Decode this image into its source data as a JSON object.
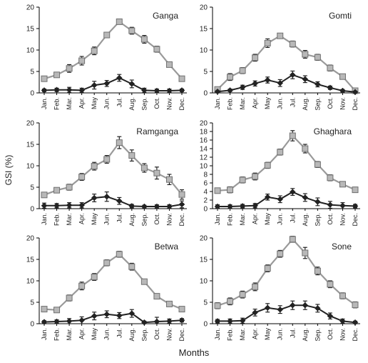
{
  "figure": {
    "ylabel": "GSI (%)",
    "xlabel": "Months"
  },
  "chart_data": [
    {
      "type": "line",
      "title": "Ganga",
      "categories": [
        "Jan.",
        "Feb.",
        "Mar.",
        "Apr.",
        "May",
        "Jun.",
        "Jul.",
        "Aug.",
        "Sep.",
        "Oct.",
        "Nov.",
        "Dec."
      ],
      "ylim": [
        0,
        20
      ],
      "yticks": [
        0,
        5,
        10,
        15,
        20
      ],
      "series": [
        {
          "values": [
            3.3,
            4.2,
            5.7,
            7.5,
            9.8,
            13.5,
            16.6,
            14.5,
            12.5,
            10.2,
            6.6,
            3.3
          ],
          "errors": [
            0.6,
            0.5,
            0.9,
            1.0,
            0.9,
            0.6,
            0.6,
            0.8,
            0.9,
            0.7,
            0.5,
            0.6
          ],
          "color": "#9a9a9a",
          "marker": "square"
        },
        {
          "values": [
            0.6,
            0.7,
            0.7,
            0.6,
            1.8,
            2.2,
            3.5,
            2.1,
            0.6,
            0.5,
            0.5,
            0.6
          ],
          "errors": [
            0.3,
            0.4,
            0.6,
            0.5,
            0.9,
            0.7,
            0.8,
            0.9,
            0.5,
            0.4,
            0.4,
            0.3
          ],
          "color": "#222222",
          "marker": "diamond"
        }
      ]
    },
    {
      "type": "line",
      "title": "Gomti",
      "categories": [
        "Jan.",
        "Feb.",
        "Mar.",
        "Apr.",
        "May",
        "Jun.",
        "Jul.",
        "Aug.",
        "Sep.",
        "Oct.",
        "Nov.",
        "Dec."
      ],
      "ylim": [
        0,
        20
      ],
      "yticks": [
        0,
        5,
        10,
        15,
        20
      ],
      "series": [
        {
          "values": [
            0.8,
            3.7,
            5.2,
            8.2,
            11.6,
            13.3,
            11.4,
            9.0,
            8.3,
            5.8,
            3.8,
            0.5
          ],
          "errors": [
            0.3,
            0.8,
            0.7,
            0.8,
            1.0,
            0.6,
            0.7,
            0.9,
            0.7,
            0.7,
            0.6,
            0.3
          ],
          "color": "#9a9a9a",
          "marker": "square"
        },
        {
          "values": [
            0.3,
            0.6,
            1.3,
            2.2,
            3.0,
            2.3,
            4.2,
            3.2,
            2.0,
            1.2,
            0.5,
            0.2
          ],
          "errors": [
            0.2,
            0.3,
            0.5,
            0.6,
            0.7,
            0.8,
            0.9,
            0.8,
            0.6,
            0.4,
            0.3,
            0.2
          ],
          "color": "#222222",
          "marker": "diamond"
        }
      ]
    },
    {
      "type": "line",
      "title": "Ramganga",
      "categories": [
        "Jan.",
        "Feb.",
        "Mar.",
        "Apr.",
        "May",
        "Jun.",
        "Jul.",
        "Aug.",
        "Sep.",
        "Oct.",
        "Nov.",
        "Dec."
      ],
      "ylim": [
        0,
        20
      ],
      "yticks": [
        0,
        5,
        10,
        15,
        20
      ],
      "series": [
        {
          "values": [
            3.2,
            4.3,
            5.0,
            7.4,
            9.9,
            11.5,
            15.4,
            12.4,
            9.5,
            8.3,
            6.8,
            3.3
          ],
          "errors": [
            0.6,
            0.6,
            0.7,
            0.8,
            0.9,
            0.9,
            1.4,
            1.3,
            1.0,
            1.4,
            1.2,
            1.1
          ],
          "color": "#9a9a9a",
          "marker": "square"
        },
        {
          "values": [
            0.7,
            0.7,
            0.8,
            0.8,
            2.5,
            2.8,
            1.8,
            0.6,
            0.5,
            0.5,
            0.5,
            1.0
          ],
          "errors": [
            0.6,
            0.5,
            0.6,
            0.6,
            0.9,
            1.1,
            0.8,
            0.4,
            0.3,
            0.4,
            0.4,
            0.8
          ],
          "color": "#222222",
          "marker": "diamond"
        }
      ]
    },
    {
      "type": "line",
      "title": "Ghaghara",
      "categories": [
        "Jan.",
        "Feb.",
        "Mar.",
        "Apr.",
        "May",
        "Jun.",
        "Jul.",
        "Aug.",
        "Sep.",
        "Oct.",
        "Nov.",
        "Dec."
      ],
      "ylim": [
        0,
        20
      ],
      "yticks": [
        0,
        2,
        4,
        6,
        8,
        10,
        12,
        14,
        16,
        18,
        20
      ],
      "series": [
        {
          "values": [
            4.2,
            4.4,
            6.7,
            7.5,
            10.1,
            13.2,
            17.0,
            14.0,
            10.3,
            7.2,
            5.7,
            4.4
          ],
          "errors": [
            0.6,
            0.7,
            0.7,
            0.8,
            0.7,
            0.7,
            1.2,
            1.0,
            0.7,
            0.7,
            0.6,
            0.6
          ],
          "color": "#9a9a9a",
          "marker": "square"
        },
        {
          "values": [
            0.5,
            0.5,
            0.6,
            0.7,
            2.7,
            2.2,
            3.9,
            2.6,
            1.6,
            0.9,
            0.7,
            0.6
          ],
          "errors": [
            0.4,
            0.4,
            0.4,
            0.5,
            0.7,
            0.8,
            0.8,
            0.9,
            0.9,
            0.8,
            0.7,
            0.4
          ],
          "color": "#222222",
          "marker": "diamond"
        }
      ]
    },
    {
      "type": "line",
      "title": "Betwa",
      "categories": [
        "Jan.",
        "Feb.",
        "Mar.",
        "Apr.",
        "May",
        "Jun.",
        "Jul.",
        "Aug.",
        "Sep.",
        "Oct.",
        "Nov.",
        "Dec."
      ],
      "ylim": [
        0,
        20
      ],
      "yticks": [
        0,
        5,
        10,
        15,
        20
      ],
      "series": [
        {
          "values": [
            3.4,
            3.2,
            6.0,
            8.8,
            10.9,
            14.2,
            16.2,
            13.3,
            9.8,
            6.4,
            4.6,
            3.4
          ],
          "errors": [
            0.6,
            0.5,
            0.7,
            0.9,
            0.8,
            0.7,
            0.7,
            0.8,
            0.6,
            0.6,
            0.6,
            0.6
          ],
          "color": "#9a9a9a",
          "marker": "square"
        },
        {
          "values": [
            0.4,
            0.5,
            0.6,
            0.8,
            1.8,
            2.2,
            1.9,
            2.4,
            0.3,
            0.5,
            0.6,
            0.8
          ],
          "errors": [
            0.3,
            0.4,
            0.6,
            0.8,
            0.9,
            0.8,
            0.7,
            0.9,
            0.3,
            1.0,
            0.5,
            0.4
          ],
          "color": "#222222",
          "marker": "diamond"
        }
      ]
    },
    {
      "type": "line",
      "title": "Sone",
      "categories": [
        "Jan.",
        "Feb.",
        "Mar.",
        "Apr.",
        "May",
        "Jun.",
        "Jul.",
        "Aug.",
        "Sep.",
        "Oct.",
        "Nov.",
        "Dec."
      ],
      "ylim": [
        0,
        20
      ],
      "yticks": [
        0,
        5,
        10,
        15,
        20
      ],
      "series": [
        {
          "values": [
            4.2,
            5.2,
            6.8,
            8.6,
            12.9,
            16.3,
            19.7,
            16.5,
            12.3,
            9.2,
            6.5,
            4.4
          ],
          "errors": [
            0.7,
            0.8,
            0.8,
            0.9,
            0.8,
            0.8,
            0.7,
            1.3,
            0.9,
            0.8,
            0.7,
            0.7
          ],
          "color": "#9a9a9a",
          "marker": "square"
        },
        {
          "values": [
            0.6,
            0.6,
            0.7,
            2.6,
            3.7,
            3.3,
            4.3,
            4.3,
            3.6,
            1.8,
            0.6,
            0.3
          ],
          "errors": [
            0.4,
            0.5,
            0.6,
            0.8,
            1.0,
            0.9,
            1.0,
            1.0,
            0.9,
            0.7,
            0.5,
            0.3
          ],
          "color": "#222222",
          "marker": "diamond"
        }
      ]
    }
  ]
}
